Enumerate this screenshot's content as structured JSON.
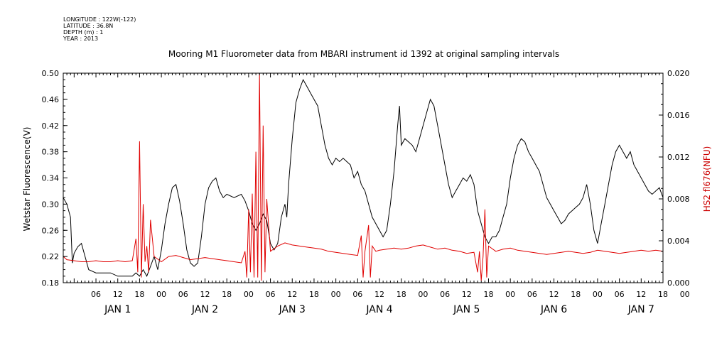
{
  "meta": {
    "longitude": "LONGITUDE : 122W(-122)",
    "latitude": "LATITUDE : 36.8N",
    "depth": "DEPTH (m) : 1",
    "year": "YEAR : 2013"
  },
  "chart_data": {
    "type": "line",
    "title": "Mooring M1 Fluorometer data from MBARI instrument id 1392 at original sampling intervals",
    "ylabel": "Wetstar Fluorescence(V)",
    "y2label": "HS2 fl676(NFU)",
    "x_unit": "hours since JAN 1 00:00, 2013",
    "xlim": [
      -3,
      162
    ],
    "ylim": [
      0.18,
      0.5
    ],
    "y2lim": [
      0.0,
      0.02
    ],
    "y_ticks": [
      "0.18",
      "0.22",
      "0.26",
      "0.30",
      "0.34",
      "0.38",
      "0.42",
      "0.46",
      "0.50"
    ],
    "y2_ticks": [
      "0.000",
      "0.004",
      "0.008",
      "0.012",
      "0.016",
      "0.020"
    ],
    "x_tick_labels": [
      "06",
      "12",
      "18",
      "00",
      "06",
      "12",
      "18",
      "00",
      "06",
      "12",
      "18",
      "00",
      "06",
      "12",
      "18",
      "00",
      "06",
      "12",
      "18",
      "00",
      "06",
      "12",
      "18",
      "00",
      "06",
      "12",
      "18",
      "00"
    ],
    "day_labels": [
      "JAN  1",
      "JAN  2",
      "JAN  3",
      "JAN  4",
      "JAN  5",
      "JAN  6",
      "JAN  7"
    ],
    "grid": false,
    "series": [
      {
        "name": "Wetstar Fluorescence(V)",
        "axis": "left",
        "color": "#000000",
        "points": [
          [
            -3,
            0.31
          ],
          [
            -2,
            0.3
          ],
          [
            -1,
            0.28
          ],
          [
            -0.5,
            0.21
          ],
          [
            0,
            0.225
          ],
          [
            1,
            0.235
          ],
          [
            2,
            0.24
          ],
          [
            3,
            0.22
          ],
          [
            4,
            0.2
          ],
          [
            6,
            0.195
          ],
          [
            8,
            0.195
          ],
          [
            10,
            0.195
          ],
          [
            12,
            0.19
          ],
          [
            14,
            0.19
          ],
          [
            16,
            0.19
          ],
          [
            17,
            0.195
          ],
          [
            18,
            0.19
          ],
          [
            19,
            0.2
          ],
          [
            20,
            0.19
          ],
          [
            21,
            0.205
          ],
          [
            22,
            0.22
          ],
          [
            23,
            0.2
          ],
          [
            24,
            0.23
          ],
          [
            25,
            0.27
          ],
          [
            26,
            0.3
          ],
          [
            27,
            0.325
          ],
          [
            28,
            0.33
          ],
          [
            29,
            0.305
          ],
          [
            30,
            0.27
          ],
          [
            31,
            0.23
          ],
          [
            32,
            0.21
          ],
          [
            33,
            0.205
          ],
          [
            34,
            0.21
          ],
          [
            35,
            0.25
          ],
          [
            36,
            0.3
          ],
          [
            37,
            0.325
          ],
          [
            38,
            0.335
          ],
          [
            39,
            0.34
          ],
          [
            40,
            0.32
          ],
          [
            41,
            0.31
          ],
          [
            42,
            0.315
          ],
          [
            44,
            0.31
          ],
          [
            46,
            0.315
          ],
          [
            47,
            0.305
          ],
          [
            48,
            0.29
          ],
          [
            49,
            0.27
          ],
          [
            50,
            0.26
          ],
          [
            51,
            0.27
          ],
          [
            52,
            0.285
          ],
          [
            53,
            0.275
          ],
          [
            54,
            0.24
          ],
          [
            55,
            0.23
          ],
          [
            56,
            0.24
          ],
          [
            57,
            0.28
          ],
          [
            58,
            0.3
          ],
          [
            58.5,
            0.28
          ],
          [
            59,
            0.33
          ],
          [
            60,
            0.4
          ],
          [
            61,
            0.455
          ],
          [
            62,
            0.475
          ],
          [
            63,
            0.49
          ],
          [
            64,
            0.48
          ],
          [
            65,
            0.47
          ],
          [
            66,
            0.46
          ],
          [
            67,
            0.45
          ],
          [
            68,
            0.42
          ],
          [
            69,
            0.39
          ],
          [
            70,
            0.37
          ],
          [
            71,
            0.36
          ],
          [
            72,
            0.37
          ],
          [
            73,
            0.365
          ],
          [
            74,
            0.37
          ],
          [
            75,
            0.365
          ],
          [
            76,
            0.36
          ],
          [
            77,
            0.34
          ],
          [
            78,
            0.35
          ],
          [
            79,
            0.33
          ],
          [
            80,
            0.32
          ],
          [
            81,
            0.3
          ],
          [
            82,
            0.28
          ],
          [
            83,
            0.27
          ],
          [
            84,
            0.26
          ],
          [
            85,
            0.25
          ],
          [
            86,
            0.26
          ],
          [
            87,
            0.3
          ],
          [
            88,
            0.35
          ],
          [
            89,
            0.42
          ],
          [
            89.5,
            0.45
          ],
          [
            90,
            0.39
          ],
          [
            91,
            0.4
          ],
          [
            92,
            0.395
          ],
          [
            93,
            0.39
          ],
          [
            94,
            0.38
          ],
          [
            95,
            0.4
          ],
          [
            96,
            0.42
          ],
          [
            97,
            0.44
          ],
          [
            98,
            0.46
          ],
          [
            99,
            0.45
          ],
          [
            100,
            0.42
          ],
          [
            101,
            0.39
          ],
          [
            102,
            0.36
          ],
          [
            103,
            0.33
          ],
          [
            104,
            0.31
          ],
          [
            105,
            0.32
          ],
          [
            106,
            0.33
          ],
          [
            107,
            0.34
          ],
          [
            108,
            0.335
          ],
          [
            109,
            0.345
          ],
          [
            110,
            0.33
          ],
          [
            111,
            0.29
          ],
          [
            112,
            0.27
          ],
          [
            113,
            0.25
          ],
          [
            114,
            0.24
          ],
          [
            115,
            0.25
          ],
          [
            116,
            0.25
          ],
          [
            117,
            0.26
          ],
          [
            118,
            0.28
          ],
          [
            119,
            0.3
          ],
          [
            120,
            0.34
          ],
          [
            121,
            0.37
          ],
          [
            122,
            0.39
          ],
          [
            123,
            0.4
          ],
          [
            124,
            0.395
          ],
          [
            125,
            0.38
          ],
          [
            126,
            0.37
          ],
          [
            127,
            0.36
          ],
          [
            128,
            0.35
          ],
          [
            129,
            0.33
          ],
          [
            130,
            0.31
          ],
          [
            131,
            0.3
          ],
          [
            132,
            0.29
          ],
          [
            133,
            0.28
          ],
          [
            134,
            0.27
          ],
          [
            135,
            0.275
          ],
          [
            136,
            0.285
          ],
          [
            137,
            0.29
          ],
          [
            138,
            0.295
          ],
          [
            139,
            0.3
          ],
          [
            140,
            0.31
          ],
          [
            141,
            0.33
          ],
          [
            142,
            0.3
          ],
          [
            143,
            0.26
          ],
          [
            144,
            0.24
          ],
          [
            145,
            0.27
          ],
          [
            146,
            0.3
          ],
          [
            147,
            0.33
          ],
          [
            148,
            0.36
          ],
          [
            149,
            0.38
          ],
          [
            150,
            0.39
          ],
          [
            151,
            0.38
          ],
          [
            152,
            0.37
          ],
          [
            153,
            0.38
          ],
          [
            154,
            0.36
          ],
          [
            155,
            0.35
          ],
          [
            156,
            0.34
          ],
          [
            157,
            0.33
          ],
          [
            158,
            0.32
          ],
          [
            159,
            0.315
          ],
          [
            160,
            0.32
          ],
          [
            161,
            0.325
          ],
          [
            162,
            0.31
          ]
        ]
      },
      {
        "name": "HS2 fl676(NFU)",
        "axis": "right",
        "color": "#e00000",
        "points": [
          [
            -3,
            0.0025
          ],
          [
            -2,
            0.0022
          ],
          [
            0,
            0.0021
          ],
          [
            2,
            0.002
          ],
          [
            4,
            0.002
          ],
          [
            6,
            0.0021
          ],
          [
            8,
            0.002
          ],
          [
            10,
            0.002
          ],
          [
            12,
            0.0021
          ],
          [
            14,
            0.002
          ],
          [
            16,
            0.0021
          ],
          [
            17,
            0.0042
          ],
          [
            17.5,
            0.001
          ],
          [
            18,
            0.0135
          ],
          [
            18.5,
            0.0005
          ],
          [
            19,
            0.0075
          ],
          [
            19.5,
            0.002
          ],
          [
            20,
            0.0035
          ],
          [
            20.5,
            0.001
          ],
          [
            21,
            0.006
          ],
          [
            22,
            0.0025
          ],
          [
            24,
            0.002
          ],
          [
            26,
            0.0025
          ],
          [
            28,
            0.0026
          ],
          [
            30,
            0.0024
          ],
          [
            32,
            0.0022
          ],
          [
            34,
            0.0023
          ],
          [
            36,
            0.0024
          ],
          [
            38,
            0.0023
          ],
          [
            40,
            0.0022
          ],
          [
            42,
            0.0021
          ],
          [
            44,
            0.002
          ],
          [
            46,
            0.0019
          ],
          [
            47,
            0.003
          ],
          [
            47.5,
            0.0005
          ],
          [
            48,
            0.007
          ],
          [
            48.5,
            0.001
          ],
          [
            49,
            0.0085
          ],
          [
            49.5,
            0.0005
          ],
          [
            50,
            0.0125
          ],
          [
            50.5,
            0.0005
          ],
          [
            51,
            0.02
          ],
          [
            51.5,
            0.0002
          ],
          [
            52,
            0.015
          ],
          [
            52.5,
            0.001
          ],
          [
            53,
            0.008
          ],
          [
            54,
            0.003
          ],
          [
            56,
            0.0035
          ],
          [
            58,
            0.0038
          ],
          [
            60,
            0.0036
          ],
          [
            62,
            0.0035
          ],
          [
            64,
            0.0034
          ],
          [
            66,
            0.0033
          ],
          [
            68,
            0.0032
          ],
          [
            70,
            0.003
          ],
          [
            72,
            0.0029
          ],
          [
            74,
            0.0028
          ],
          [
            76,
            0.0027
          ],
          [
            78,
            0.0026
          ],
          [
            79,
            0.0045
          ],
          [
            79.5,
            0.0005
          ],
          [
            80,
            0.003
          ],
          [
            81,
            0.0055
          ],
          [
            81.5,
            0.0005
          ],
          [
            82,
            0.0035
          ],
          [
            83,
            0.003
          ],
          [
            84,
            0.0031
          ],
          [
            86,
            0.0032
          ],
          [
            88,
            0.0033
          ],
          [
            90,
            0.0032
          ],
          [
            92,
            0.0033
          ],
          [
            94,
            0.0035
          ],
          [
            96,
            0.0036
          ],
          [
            98,
            0.0034
          ],
          [
            100,
            0.0032
          ],
          [
            102,
            0.0033
          ],
          [
            104,
            0.0031
          ],
          [
            106,
            0.003
          ],
          [
            108,
            0.0028
          ],
          [
            110,
            0.0029
          ],
          [
            111,
            0.001
          ],
          [
            111.5,
            0.003
          ],
          [
            112,
            0.0002
          ],
          [
            112.5,
            0.0025
          ],
          [
            113,
            0.007
          ],
          [
            113.5,
            0.0005
          ],
          [
            114,
            0.0035
          ],
          [
            116,
            0.003
          ],
          [
            118,
            0.0032
          ],
          [
            120,
            0.0033
          ],
          [
            122,
            0.0031
          ],
          [
            124,
            0.003
          ],
          [
            126,
            0.0029
          ],
          [
            128,
            0.0028
          ],
          [
            130,
            0.0027
          ],
          [
            132,
            0.0028
          ],
          [
            134,
            0.0029
          ],
          [
            136,
            0.003
          ],
          [
            138,
            0.0029
          ],
          [
            140,
            0.0028
          ],
          [
            142,
            0.0029
          ],
          [
            144,
            0.0031
          ],
          [
            146,
            0.003
          ],
          [
            148,
            0.0029
          ],
          [
            150,
            0.0028
          ],
          [
            152,
            0.0029
          ],
          [
            154,
            0.003
          ],
          [
            156,
            0.0031
          ],
          [
            158,
            0.003
          ],
          [
            160,
            0.0031
          ],
          [
            162,
            0.003
          ]
        ]
      }
    ]
  }
}
